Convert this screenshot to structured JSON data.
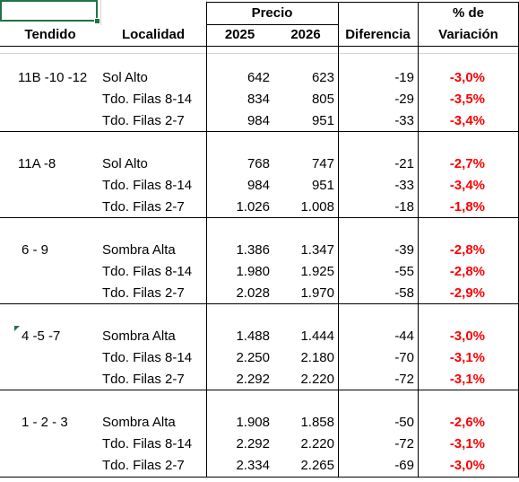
{
  "header": {
    "row1": {
      "precio": "Precio",
      "pct": "% de"
    },
    "row2": {
      "tendido": "Tendido",
      "localidad": "Localidad",
      "y2025": "2025",
      "y2026": "2026",
      "diferencia": "Diferencia",
      "variacion": "Variación"
    }
  },
  "groups": [
    {
      "tendido": "11B -10 -12",
      "rows": [
        {
          "localidad": "Sol Alto",
          "p2025": "642",
          "p2026": "623",
          "dif": "-19",
          "var": "-3,0%"
        },
        {
          "localidad": "Tdo. Filas 8-14",
          "p2025": "834",
          "p2026": "805",
          "dif": "-29",
          "var": "-3,5%"
        },
        {
          "localidad": "Tdo. Filas 2-7",
          "p2025": "984",
          "p2026": "951",
          "dif": "-33",
          "var": "-3,4%"
        }
      ]
    },
    {
      "tendido": "11A -8",
      "rows": [
        {
          "localidad": "Sol Alto",
          "p2025": "768",
          "p2026": "747",
          "dif": "-21",
          "var": "-2,7%"
        },
        {
          "localidad": "Tdo. Filas 8-14",
          "p2025": "984",
          "p2026": "951",
          "dif": "-33",
          "var": "-3,4%"
        },
        {
          "localidad": "Tdo. Filas 2-7",
          "p2025": "1.026",
          "p2026": "1.008",
          "dif": "-18",
          "var": "-1,8%"
        }
      ]
    },
    {
      "tendido": "6 - 9",
      "rows": [
        {
          "localidad": "Sombra Alta",
          "p2025": "1.386",
          "p2026": "1.347",
          "dif": "-39",
          "var": "-2,8%"
        },
        {
          "localidad": "Tdo. Filas 8-14",
          "p2025": "1.980",
          "p2026": "1.925",
          "dif": "-55",
          "var": "-2,8%"
        },
        {
          "localidad": "Tdo. Filas 2-7",
          "p2025": "2.028",
          "p2026": "1.970",
          "dif": "-58",
          "var": "-2,9%"
        }
      ]
    },
    {
      "tendido": "4 -5 -7",
      "rows": [
        {
          "localidad": "Sombra Alta",
          "p2025": "1.488",
          "p2026": "1.444",
          "dif": "-44",
          "var": "-3,0%"
        },
        {
          "localidad": "Tdo. Filas 8-14",
          "p2025": "2.250",
          "p2026": "2.180",
          "dif": "-70",
          "var": "-3,1%"
        },
        {
          "localidad": "Tdo. Filas 2-7",
          "p2025": "2.292",
          "p2026": "2.220",
          "dif": "-72",
          "var": "-3,1%"
        }
      ]
    },
    {
      "tendido": "1 - 2 - 3",
      "rows": [
        {
          "localidad": "Sombra Alta",
          "p2025": "1.908",
          "p2026": "1.858",
          "dif": "-50",
          "var": "-2,6%"
        },
        {
          "localidad": "Tdo. Filas 8-14",
          "p2025": "2.292",
          "p2026": "2.220",
          "dif": "-72",
          "var": "-3,1%"
        },
        {
          "localidad": "Tdo. Filas 2-7",
          "p2025": "2.334",
          "p2026": "2.265",
          "dif": "-69",
          "var": "-3,0%"
        }
      ]
    }
  ],
  "colors": {
    "negative": "#ff0000",
    "selection": "#217346"
  }
}
